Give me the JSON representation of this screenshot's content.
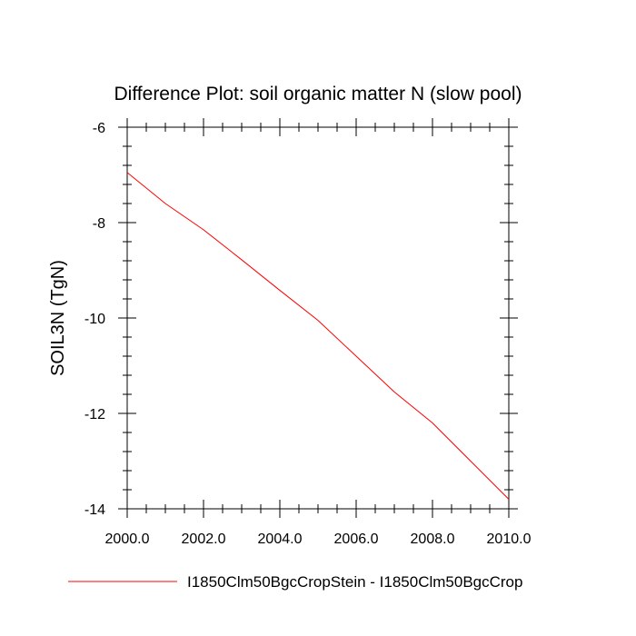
{
  "chart_data": {
    "type": "line",
    "title": "Difference Plot: soil organic matter N (slow pool)",
    "xlabel": "",
    "ylabel": "SOIL3N  (TgN)",
    "xlim": [
      2000,
      2010
    ],
    "ylim": [
      -14,
      -6
    ],
    "x_ticks": [
      "2000.0",
      "2002.0",
      "2004.0",
      "2006.0",
      "2008.0",
      "2010.0"
    ],
    "y_ticks": [
      "-6",
      "-8",
      "-10",
      "-12",
      "-14"
    ],
    "grid": false,
    "legend_position": "bottom",
    "series": [
      {
        "name": "I1850Clm50BgcCropStein - I1850Clm50BgcCrop",
        "color": "#ff0000",
        "x": [
          2000,
          2001,
          2002,
          2003,
          2004,
          2005,
          2006,
          2007,
          2008,
          2009,
          2010
        ],
        "y": [
          -6.95,
          -7.6,
          -8.15,
          -8.78,
          -9.42,
          -10.05,
          -10.8,
          -11.55,
          -12.2,
          -13.0,
          -13.8
        ]
      }
    ]
  }
}
